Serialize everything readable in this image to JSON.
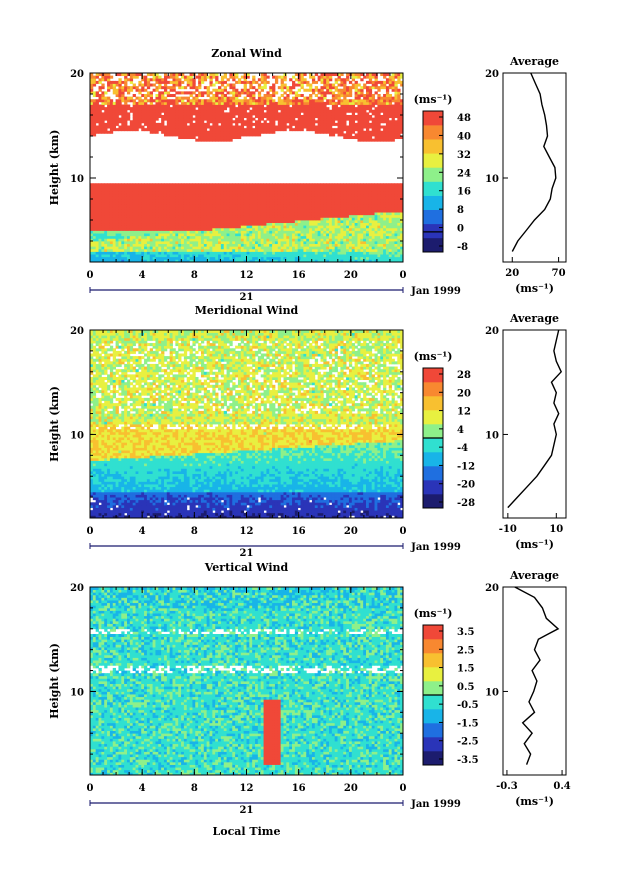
{
  "chart_data": [
    {
      "type": "heatmap",
      "title": "Zonal Wind",
      "ylabel": "Height (km)",
      "unit_label": "(ms⁻¹)",
      "date_label": "Jan 1999",
      "day_label": "21",
      "x_ticks": [
        "0",
        "4",
        "8",
        "12",
        "16",
        "20",
        "0"
      ],
      "y_ticks": [
        "20",
        "10"
      ],
      "xlim": [
        0,
        24
      ],
      "ylim": [
        2,
        20
      ],
      "colorbar": {
        "min": -8,
        "max": 48,
        "ticks": [
          "48",
          "40",
          "32",
          "24",
          "16",
          "8",
          "0",
          "-8"
        ]
      },
      "colors": [
        "#1c1c6e",
        "#2a34b8",
        "#1f6fe0",
        "#18b4e8",
        "#30e0d0",
        "#8ef08a",
        "#e8f040",
        "#f8c030",
        "#f88830",
        "#f04838"
      ],
      "average": {
        "title": "Average",
        "xlabel": "(ms⁻¹)",
        "x_ticks": [
          "20",
          "70"
        ],
        "xlim": [
          10,
          78
        ],
        "heights": [
          3,
          4,
          5,
          6,
          7,
          8,
          9,
          10,
          11,
          12,
          13,
          14,
          15,
          16,
          17,
          18,
          19,
          20
        ],
        "values": [
          20,
          26,
          35,
          44,
          55,
          61,
          63,
          67,
          66,
          60,
          54,
          58,
          57,
          55,
          52,
          50,
          45,
          40
        ]
      }
    },
    {
      "type": "heatmap",
      "title": "Meridional Wind",
      "ylabel": "Height (km)",
      "unit_label": "(ms⁻¹)",
      "date_label": "Jan 1999",
      "day_label": "21",
      "x_ticks": [
        "0",
        "4",
        "8",
        "12",
        "16",
        "20",
        "0"
      ],
      "y_ticks": [
        "20",
        "10"
      ],
      "xlim": [
        0,
        24
      ],
      "ylim": [
        2,
        20
      ],
      "colorbar": {
        "min": -28,
        "max": 28,
        "ticks": [
          "28",
          "20",
          "12",
          "4",
          "-4",
          "-12",
          "-20",
          "-28"
        ]
      },
      "colors": [
        "#1c1c6e",
        "#2a34b8",
        "#1f6fe0",
        "#18b4e8",
        "#30e0d0",
        "#8ef08a",
        "#e8f040",
        "#f8c030",
        "#f88830",
        "#f04838"
      ],
      "average": {
        "title": "Average",
        "xlabel": "(ms⁻¹)",
        "x_ticks": [
          "-10",
          "10"
        ],
        "xlim": [
          -12,
          14
        ],
        "heights": [
          3,
          4,
          5,
          6,
          7,
          8,
          9,
          10,
          11,
          12,
          13,
          14,
          15,
          16,
          17,
          18,
          19,
          20
        ],
        "values": [
          -10,
          -6,
          -2,
          2,
          5,
          8,
          9,
          10,
          9,
          11,
          9,
          10,
          8,
          12,
          10,
          9,
          10,
          11
        ]
      }
    },
    {
      "type": "heatmap",
      "title": "Vertical Wind",
      "ylabel": "Height (km)",
      "xlabel": "Local Time",
      "unit_label": "(ms⁻¹)",
      "date_label": "Jan 1999",
      "day_label": "21",
      "x_ticks": [
        "0",
        "4",
        "8",
        "12",
        "16",
        "20",
        "0"
      ],
      "y_ticks": [
        "20",
        "10"
      ],
      "xlim": [
        0,
        24
      ],
      "ylim": [
        2,
        20
      ],
      "colorbar": {
        "min": -3.5,
        "max": 3.5,
        "ticks": [
          "3.5",
          "2.5",
          "1.5",
          "0.5",
          "-0.5",
          "-1.5",
          "-2.5",
          "-3.5"
        ]
      },
      "colors": [
        "#1c1c6e",
        "#2a34b8",
        "#1f6fe0",
        "#18b4e8",
        "#30e0d0",
        "#8ef08a",
        "#e8f040",
        "#f8c030",
        "#f88830",
        "#f04838"
      ],
      "average": {
        "title": "Average",
        "xlabel": "(ms⁻¹)",
        "x_ticks": [
          "-0.3",
          "0.4"
        ],
        "xlim": [
          -0.35,
          0.45
        ],
        "heights": [
          3,
          4,
          5,
          6,
          7,
          8,
          9,
          10,
          11,
          12,
          13,
          14,
          15,
          16,
          17,
          18,
          19,
          20
        ],
        "values": [
          -0.05,
          0.0,
          -0.08,
          0.02,
          -0.1,
          0.05,
          -0.02,
          0.04,
          0.08,
          0.02,
          0.12,
          0.05,
          0.1,
          0.35,
          0.2,
          0.15,
          0.05,
          -0.2
        ]
      }
    }
  ]
}
